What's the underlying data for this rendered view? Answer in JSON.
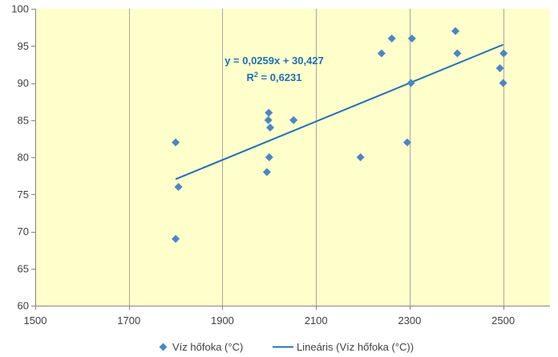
{
  "chart_data": {
    "type": "scatter",
    "title": "",
    "xlabel": "",
    "ylabel": "",
    "xlim": [
      1500,
      2600
    ],
    "ylim": [
      60,
      100
    ],
    "x_ticks": [
      1500,
      1700,
      1900,
      2100,
      2300,
      2500
    ],
    "y_ticks": [
      60,
      65,
      70,
      75,
      80,
      85,
      90,
      95,
      100
    ],
    "x_tick_labels": [
      "1500",
      "1700",
      "1900",
      "2100",
      "2300",
      "2500"
    ],
    "y_tick_labels": [
      "60",
      "65",
      "70",
      "75",
      "80",
      "85",
      "90",
      "95",
      "100"
    ],
    "grid": "vertical",
    "series": [
      {
        "name": "Víz hőfoka (°C)",
        "points": [
          {
            "x": 1800,
            "y": 82
          },
          {
            "x": 1800,
            "y": 69
          },
          {
            "x": 1806,
            "y": 76
          },
          {
            "x": 1995,
            "y": 78
          },
          {
            "x": 1998,
            "y": 85
          },
          {
            "x": 1999,
            "y": 86
          },
          {
            "x": 2000,
            "y": 80
          },
          {
            "x": 2002,
            "y": 84
          },
          {
            "x": 2052,
            "y": 85
          },
          {
            "x": 2195,
            "y": 80
          },
          {
            "x": 2240,
            "y": 94
          },
          {
            "x": 2262,
            "y": 96
          },
          {
            "x": 2295,
            "y": 82
          },
          {
            "x": 2303,
            "y": 90
          },
          {
            "x": 2305,
            "y": 96
          },
          {
            "x": 2398,
            "y": 97
          },
          {
            "x": 2402,
            "y": 94
          },
          {
            "x": 2493,
            "y": 92
          },
          {
            "x": 2500,
            "y": 90
          },
          {
            "x": 2501,
            "y": 94
          }
        ]
      }
    ],
    "trendline": {
      "name": "Lineáris (Víz hőfoka (°C))",
      "slope": 0.0259,
      "intercept": 30.427,
      "x_range": [
        1800,
        2500
      ],
      "equation": "y = 0,0259x + 30,427",
      "r2_label": "R",
      "r2_sup": "2",
      "r2_value": " = 0,6231"
    },
    "legend_position": "bottom",
    "colors": {
      "plot_background": "#ffffcc",
      "marker": "#4a86c6",
      "trendline": "#1f6fb5",
      "grid": "#a6a6a6",
      "axis": "#868686",
      "text": "#404040",
      "equation_text": "#1f6fb5"
    }
  }
}
